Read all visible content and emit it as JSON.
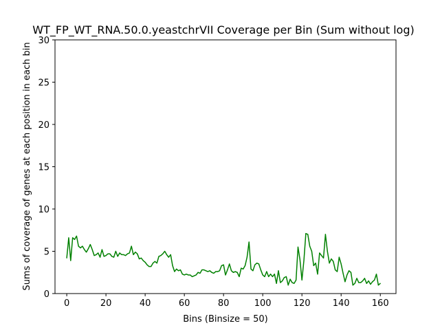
{
  "chart_data": {
    "type": "line",
    "title": "WT_FP_WT_RNA.50.0.yeastchrVII Coverage per Bin (Sum without log)",
    "xlabel": "Bins (Binsize = 50)",
    "ylabel": "Sums of coverage of genes at each position in each bin",
    "xlim": [
      -6,
      168
    ],
    "ylim": [
      0,
      30
    ],
    "xticks": [
      0,
      20,
      40,
      60,
      80,
      100,
      120,
      140,
      160
    ],
    "yticks": [
      0,
      5,
      10,
      15,
      20,
      25,
      30
    ],
    "grid": false,
    "series": [
      {
        "color": "#008000",
        "x": [
          0,
          1,
          2,
          3,
          4,
          5,
          6,
          7,
          8,
          9,
          10,
          11,
          12,
          13,
          14,
          15,
          16,
          17,
          18,
          19,
          20,
          21,
          22,
          23,
          24,
          25,
          26,
          27,
          28,
          29,
          30,
          31,
          32,
          33,
          34,
          35,
          36,
          37,
          38,
          39,
          40,
          41,
          42,
          43,
          44,
          45,
          46,
          47,
          48,
          49,
          50,
          51,
          52,
          53,
          54,
          55,
          56,
          57,
          58,
          59,
          60,
          61,
          62,
          63,
          64,
          65,
          66,
          67,
          68,
          69,
          70,
          71,
          72,
          73,
          74,
          75,
          76,
          77,
          78,
          79,
          80,
          81,
          82,
          83,
          84,
          85,
          86,
          87,
          88,
          89,
          90,
          91,
          92,
          93,
          94,
          95,
          96,
          97,
          98,
          99,
          100,
          101,
          102,
          103,
          104,
          105,
          106,
          107,
          108,
          109,
          110,
          111,
          112,
          113,
          114,
          115,
          116,
          117,
          118,
          119,
          120,
          121,
          122,
          123,
          124,
          125,
          126,
          127,
          128,
          129,
          130,
          131,
          132,
          133,
          134,
          135,
          136,
          137,
          138,
          139,
          140,
          141,
          142,
          143,
          144,
          145,
          146,
          147,
          148,
          149,
          150,
          151,
          152,
          153,
          154,
          155,
          156,
          157,
          158,
          159,
          160
        ],
        "values": [
          4.2,
          6.6,
          3.9,
          6.6,
          6.4,
          6.8,
          5.6,
          5.4,
          5.6,
          5.2,
          4.9,
          5.3,
          5.8,
          5.2,
          4.5,
          4.6,
          4.8,
          4.3,
          5.2,
          4.4,
          4.5,
          4.7,
          4.7,
          4.4,
          4.3,
          5.0,
          4.4,
          4.8,
          4.6,
          4.6,
          4.5,
          4.7,
          4.8,
          5.6,
          4.6,
          4.9,
          4.7,
          4.1,
          4.2,
          3.9,
          3.7,
          3.4,
          3.2,
          3.2,
          3.6,
          3.8,
          3.6,
          4.4,
          4.5,
          4.7,
          5.0,
          4.6,
          4.3,
          4.6,
          3.3,
          2.6,
          2.9,
          2.7,
          2.8,
          2.3,
          2.2,
          2.3,
          2.2,
          2.2,
          2.0,
          2.1,
          2.2,
          2.5,
          2.4,
          2.8,
          2.8,
          2.7,
          2.6,
          2.7,
          2.5,
          2.4,
          2.6,
          2.6,
          2.7,
          3.3,
          3.4,
          2.2,
          2.8,
          3.5,
          2.7,
          2.5,
          2.6,
          2.5,
          2.0,
          3.0,
          2.9,
          3.3,
          4.3,
          6.1,
          2.9,
          2.7,
          3.4,
          3.6,
          3.5,
          2.8,
          2.2,
          2.0,
          2.6,
          2.0,
          2.3,
          2.0,
          2.3,
          1.2,
          2.7,
          1.3,
          1.5,
          1.9,
          2.0,
          1.0,
          1.7,
          1.3,
          1.2,
          1.6,
          5.5,
          4.0,
          1.6,
          3.9,
          7.1,
          7.0,
          5.6,
          5.0,
          3.3,
          3.6,
          2.3,
          4.8,
          4.5,
          4.2,
          7.0,
          5.0,
          3.6,
          4.1,
          3.8,
          2.8,
          2.6,
          4.3,
          3.5,
          2.4,
          1.4,
          2.2,
          2.7,
          2.5,
          1.0,
          1.2,
          1.8,
          1.3,
          1.3,
          1.5,
          1.8,
          1.2,
          1.5,
          1.1,
          1.4,
          1.6,
          2.3,
          1.0,
          1.2
        ]
      }
    ]
  }
}
